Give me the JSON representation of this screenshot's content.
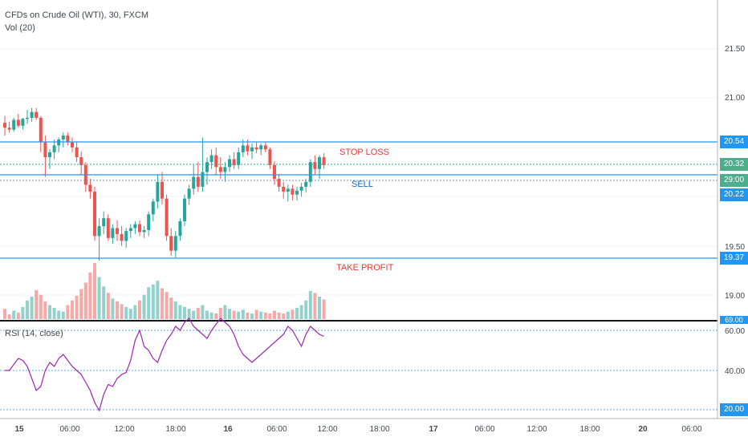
{
  "header": {
    "symbol_line": "CFDs on Crude Oil (WTI), 30, FXCM",
    "volume_label": "Vol (20)",
    "rsi_label": "RSI (14, close)"
  },
  "price_axis": {
    "labels": [
      "21.50",
      "21.00",
      "19.50",
      "19.00"
    ],
    "tag_stop": "20.54",
    "tag_last": "20.32",
    "tag_countdown": "29:00",
    "tag_sell": "20.22",
    "tag_tp": "19.37",
    "tag_vol": "69.00"
  },
  "rsi_axis": {
    "labels": [
      "60.00",
      "40.00"
    ],
    "tag_20": "20.00"
  },
  "time_axis": [
    "15",
    "06:00",
    "12:00",
    "18:00",
    "16",
    "06:00",
    "12:00",
    "18:00",
    "17",
    "06:00",
    "12:00",
    "18:00",
    "20",
    "06:00"
  ],
  "annotations": {
    "stop_loss": "STOP LOSS",
    "sell": "SELL",
    "take_profit": "TAKE PROFIT"
  },
  "colors": {
    "up": "#26a69a",
    "down": "#ef5350",
    "level_line": "#2196f3",
    "rsi_line": "#9c27b0",
    "annotation_red": "#e53935",
    "annotation_blue": "#1565c0"
  },
  "chart_data": {
    "type": "candlestick",
    "timeframe_minutes": 30,
    "ohlc": [
      [
        20.75,
        20.82,
        20.62,
        20.7
      ],
      [
        20.7,
        20.76,
        20.65,
        20.68
      ],
      [
        20.68,
        20.8,
        20.66,
        20.78
      ],
      [
        20.78,
        20.84,
        20.7,
        20.72
      ],
      [
        20.72,
        20.8,
        20.68,
        20.79
      ],
      [
        20.79,
        20.88,
        20.74,
        20.8
      ],
      [
        20.8,
        20.9,
        20.76,
        20.86
      ],
      [
        20.86,
        20.9,
        20.78,
        20.8
      ],
      [
        20.8,
        20.82,
        20.45,
        20.55
      ],
      [
        20.55,
        20.62,
        20.2,
        20.4
      ],
      [
        20.4,
        20.48,
        20.28,
        20.45
      ],
      [
        20.45,
        20.58,
        20.38,
        20.52
      ],
      [
        20.52,
        20.6,
        20.45,
        20.58
      ],
      [
        20.58,
        20.65,
        20.5,
        20.62
      ],
      [
        20.62,
        20.65,
        20.52,
        20.55
      ],
      [
        20.55,
        20.6,
        20.45,
        20.5
      ],
      [
        20.5,
        20.56,
        20.35,
        20.4
      ],
      [
        20.4,
        20.46,
        20.22,
        20.32
      ],
      [
        20.32,
        20.35,
        20.05,
        20.12
      ],
      [
        20.12,
        20.18,
        19.98,
        20.05
      ],
      [
        20.05,
        20.1,
        19.55,
        19.6
      ],
      [
        19.6,
        19.78,
        19.35,
        19.7
      ],
      [
        19.7,
        19.85,
        19.62,
        19.78
      ],
      [
        19.78,
        19.82,
        19.55,
        19.58
      ],
      [
        19.58,
        19.72,
        19.52,
        19.68
      ],
      [
        19.68,
        19.76,
        19.55,
        19.62
      ],
      [
        19.62,
        19.7,
        19.5,
        19.55
      ],
      [
        19.55,
        19.68,
        19.48,
        19.65
      ],
      [
        19.65,
        19.72,
        19.58,
        19.68
      ],
      [
        19.68,
        19.75,
        19.62,
        19.72
      ],
      [
        19.72,
        19.76,
        19.6,
        19.64
      ],
      [
        19.64,
        19.7,
        19.58,
        19.66
      ],
      [
        19.66,
        19.85,
        19.6,
        19.82
      ],
      [
        19.82,
        19.98,
        19.75,
        19.95
      ],
      [
        19.95,
        20.22,
        19.88,
        20.15
      ],
      [
        20.15,
        20.25,
        19.92,
        19.98
      ],
      [
        19.98,
        20.02,
        19.55,
        19.6
      ],
      [
        19.6,
        19.68,
        19.4,
        19.45
      ],
      [
        19.45,
        19.65,
        19.38,
        19.6
      ],
      [
        19.6,
        19.78,
        19.55,
        19.75
      ],
      [
        19.75,
        20.02,
        19.7,
        19.98
      ],
      [
        19.98,
        20.12,
        19.92,
        20.08
      ],
      [
        20.08,
        20.32,
        20.02,
        20.2
      ],
      [
        20.2,
        20.35,
        20.05,
        20.1
      ],
      [
        20.1,
        20.6,
        20.05,
        20.25
      ],
      [
        20.25,
        20.4,
        20.12,
        20.35
      ],
      [
        20.35,
        20.48,
        20.28,
        20.42
      ],
      [
        20.42,
        20.5,
        20.22,
        20.3
      ],
      [
        20.3,
        20.4,
        20.18,
        20.25
      ],
      [
        20.25,
        20.35,
        20.15,
        20.3
      ],
      [
        20.3,
        20.42,
        20.25,
        20.38
      ],
      [
        20.38,
        20.45,
        20.28,
        20.32
      ],
      [
        20.32,
        20.5,
        20.28,
        20.45
      ],
      [
        20.45,
        20.58,
        20.4,
        20.52
      ],
      [
        20.52,
        20.58,
        20.42,
        20.46
      ],
      [
        20.46,
        20.54,
        20.38,
        20.5
      ],
      [
        20.5,
        20.56,
        20.44,
        20.48
      ],
      [
        20.48,
        20.54,
        20.42,
        20.52
      ],
      [
        20.52,
        20.55,
        20.45,
        20.48
      ],
      [
        20.48,
        20.5,
        20.28,
        20.32
      ],
      [
        20.32,
        20.36,
        20.12,
        20.18
      ],
      [
        20.18,
        20.22,
        20.05,
        20.1
      ],
      [
        20.1,
        20.15,
        19.98,
        20.05
      ],
      [
        20.05,
        20.12,
        19.95,
        20.08
      ],
      [
        20.08,
        20.12,
        19.96,
        20.02
      ],
      [
        20.02,
        20.1,
        19.96,
        20.06
      ],
      [
        20.06,
        20.14,
        20.0,
        20.1
      ],
      [
        20.1,
        20.18,
        20.04,
        20.15
      ],
      [
        20.15,
        20.38,
        20.1,
        20.35
      ],
      [
        20.35,
        20.42,
        20.22,
        20.28
      ],
      [
        20.28,
        20.42,
        20.18,
        20.4
      ],
      [
        20.4,
        20.44,
        20.28,
        20.32
      ]
    ],
    "volume": [
      22,
      10,
      18,
      14,
      26,
      40,
      48,
      62,
      52,
      38,
      30,
      24,
      18,
      16,
      30,
      40,
      50,
      64,
      78,
      100,
      120,
      90,
      70,
      56,
      44,
      38,
      32,
      26,
      22,
      30,
      40,
      52,
      68,
      74,
      82,
      66,
      58,
      46,
      38,
      30,
      26,
      22,
      18,
      24,
      30,
      18,
      14,
      12,
      24,
      30,
      22,
      18,
      16,
      20,
      14,
      12,
      20,
      16,
      14,
      12,
      18,
      14,
      12,
      16,
      20,
      24,
      30,
      40,
      60,
      56,
      48,
      42
    ],
    "rsi": [
      40,
      40,
      43,
      46,
      45,
      42,
      36,
      30,
      32,
      40,
      44,
      42,
      46,
      48,
      45,
      42,
      40,
      38,
      34,
      30,
      24,
      20,
      28,
      33,
      32,
      36,
      38,
      39,
      45,
      55,
      60,
      52,
      50,
      46,
      44,
      50,
      55,
      58,
      62,
      60,
      64,
      66,
      62,
      60,
      58,
      56,
      60,
      63,
      66,
      64,
      62,
      58,
      52,
      48,
      46,
      44,
      46,
      48,
      50,
      52,
      54,
      56,
      58,
      62,
      60,
      56,
      52,
      58,
      62,
      60,
      58,
      57
    ],
    "levels": {
      "stop_loss": 20.54,
      "sell": 20.22,
      "take_profit": 19.37
    },
    "last_price": 20.32,
    "price_range": [
      19.0,
      21.75
    ],
    "rsi_range": [
      20,
      60
    ]
  }
}
